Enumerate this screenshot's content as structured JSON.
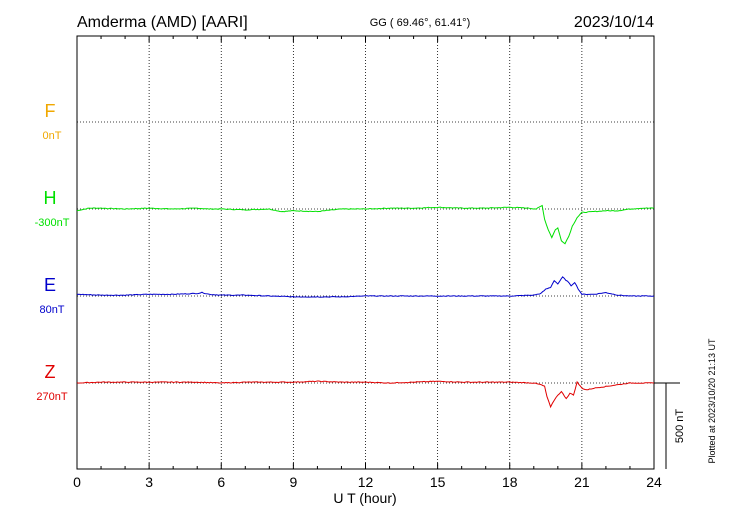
{
  "header": {
    "station": "Amderma (AMD)  [AARI]",
    "coords": "GG ( 69.46°,  61.41°)",
    "date": "2023/10/14"
  },
  "footer": {
    "plotted": "Plotted at 2023/10/20 21:13 UT"
  },
  "colors": {
    "F": "#f0a800",
    "H": "#00e000",
    "E": "#0000cc",
    "Z": "#e00000",
    "axis": "#000000",
    "grid": "#000000"
  },
  "chart_data": {
    "type": "line",
    "xlabel": "U T (hour)",
    "xlim": [
      0,
      24
    ],
    "xticks": [
      "0",
      "3",
      "6",
      "9",
      "12",
      "15",
      "18",
      "21",
      "24"
    ],
    "scale_bar": {
      "label": "500 nT",
      "value_nT": 500
    },
    "series": [
      {
        "name": "F",
        "baseline_label": "0nT",
        "color": "#f0a800",
        "points": []
      },
      {
        "name": "H",
        "baseline_label": "-300nT",
        "color": "#00e000",
        "points": [
          [
            0,
            -10
          ],
          [
            0.5,
            5
          ],
          [
            1,
            5
          ],
          [
            2,
            0
          ],
          [
            3,
            5
          ],
          [
            4,
            0
          ],
          [
            5,
            5
          ],
          [
            5.5,
            0
          ],
          [
            6,
            0
          ],
          [
            7,
            -5
          ],
          [
            8,
            0
          ],
          [
            8.5,
            -15
          ],
          [
            9,
            -10
          ],
          [
            10,
            -15
          ],
          [
            11,
            0
          ],
          [
            12,
            0
          ],
          [
            13,
            5
          ],
          [
            14,
            5
          ],
          [
            15,
            10
          ],
          [
            16,
            5
          ],
          [
            17,
            5
          ],
          [
            18,
            10
          ],
          [
            18.8,
            5
          ],
          [
            19.1,
            0
          ],
          [
            19.35,
            20
          ],
          [
            19.45,
            -60
          ],
          [
            19.6,
            -120
          ],
          [
            19.75,
            -165
          ],
          [
            19.9,
            -120
          ],
          [
            20.0,
            -110
          ],
          [
            20.15,
            -185
          ],
          [
            20.3,
            -200
          ],
          [
            20.45,
            -160
          ],
          [
            20.6,
            -100
          ],
          [
            20.8,
            -50
          ],
          [
            21,
            -20
          ],
          [
            21.5,
            -15
          ],
          [
            22,
            -10
          ],
          [
            22.5,
            -10
          ],
          [
            23,
            0
          ],
          [
            23.5,
            5
          ],
          [
            24,
            5
          ]
        ]
      },
      {
        "name": "E",
        "baseline_label": "80nT",
        "color": "#0000cc",
        "points": [
          [
            0,
            10
          ],
          [
            1,
            5
          ],
          [
            2,
            5
          ],
          [
            3,
            10
          ],
          [
            4,
            10
          ],
          [
            5,
            15
          ],
          [
            5.2,
            20
          ],
          [
            5.5,
            10
          ],
          [
            6,
            5
          ],
          [
            7,
            5
          ],
          [
            8,
            0
          ],
          [
            9,
            -5
          ],
          [
            10,
            -5
          ],
          [
            11,
            -5
          ],
          [
            12,
            0
          ],
          [
            13,
            0
          ],
          [
            14,
            0
          ],
          [
            15,
            0
          ],
          [
            16,
            0
          ],
          [
            17,
            0
          ],
          [
            18,
            0
          ],
          [
            19,
            5
          ],
          [
            19.3,
            15
          ],
          [
            19.5,
            40
          ],
          [
            19.7,
            50
          ],
          [
            19.85,
            90
          ],
          [
            20.0,
            70
          ],
          [
            20.2,
            110
          ],
          [
            20.4,
            85
          ],
          [
            20.55,
            60
          ],
          [
            20.7,
            80
          ],
          [
            20.85,
            40
          ],
          [
            21,
            10
          ],
          [
            21.5,
            10
          ],
          [
            22,
            20
          ],
          [
            22.5,
            5
          ],
          [
            23,
            0
          ],
          [
            24,
            0
          ]
        ]
      },
      {
        "name": "Z",
        "baseline_label": "270nT",
        "color": "#e00000",
        "points": [
          [
            0,
            0
          ],
          [
            1,
            5
          ],
          [
            2,
            5
          ],
          [
            3,
            5
          ],
          [
            4,
            5
          ],
          [
            5,
            5
          ],
          [
            6,
            0
          ],
          [
            7,
            5
          ],
          [
            8,
            5
          ],
          [
            9,
            5
          ],
          [
            10,
            10
          ],
          [
            11,
            5
          ],
          [
            12,
            5
          ],
          [
            13,
            0
          ],
          [
            14,
            5
          ],
          [
            15,
            10
          ],
          [
            16,
            5
          ],
          [
            17,
            5
          ],
          [
            18,
            5
          ],
          [
            19,
            0
          ],
          [
            19.3,
            -10
          ],
          [
            19.45,
            -20
          ],
          [
            19.55,
            -80
          ],
          [
            19.7,
            -140
          ],
          [
            19.85,
            -100
          ],
          [
            20.0,
            -70
          ],
          [
            20.15,
            -50
          ],
          [
            20.35,
            -90
          ],
          [
            20.5,
            -60
          ],
          [
            20.65,
            -70
          ],
          [
            20.8,
            5
          ],
          [
            21,
            -30
          ],
          [
            21.2,
            -40
          ],
          [
            21.5,
            -30
          ],
          [
            22,
            -20
          ],
          [
            23,
            0
          ],
          [
            24,
            0
          ]
        ]
      }
    ]
  }
}
